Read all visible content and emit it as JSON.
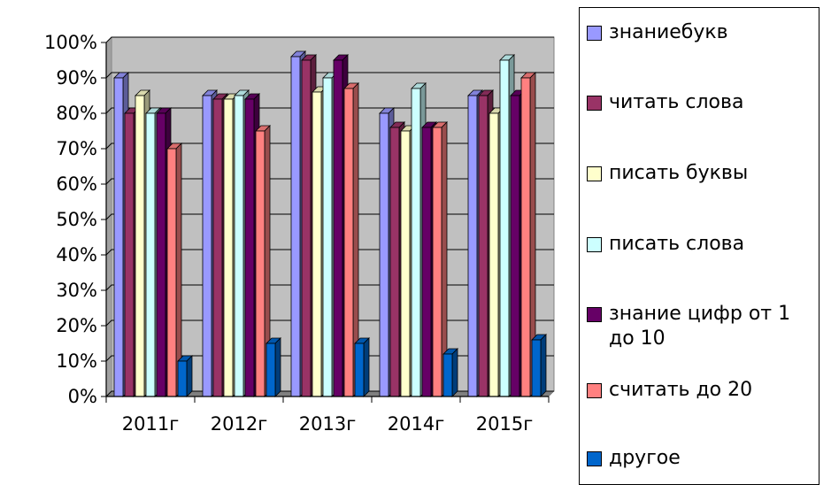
{
  "chart_data": {
    "type": "bar",
    "categories": [
      "2011г",
      "2012г",
      "2013г",
      "2014г",
      "2015г"
    ],
    "y_ticks": [
      "0%",
      "10%",
      "20%",
      "30%",
      "40%",
      "50%",
      "60%",
      "70%",
      "80%",
      "90%",
      "100%"
    ],
    "ylim": [
      0,
      100
    ],
    "grid": true,
    "legend_position": "right",
    "series": [
      {
        "name": "знаниебукв",
        "color": "#9999ff",
        "values": [
          90,
          85,
          96,
          80,
          85
        ]
      },
      {
        "name": "читать слова",
        "color": "#993366",
        "values": [
          80,
          84,
          95,
          76,
          85
        ]
      },
      {
        "name": "писать буквы",
        "color": "#ffffcc",
        "values": [
          85,
          84,
          86,
          75,
          80
        ]
      },
      {
        "name": "писать слова",
        "color": "#ccffff",
        "values": [
          80,
          85,
          90,
          87,
          95
        ]
      },
      {
        "name": "знание цифр от 1 до 10",
        "color": "#660066",
        "values": [
          80,
          84,
          95,
          76,
          85
        ]
      },
      {
        "name": "считать до  20",
        "color": "#ff8080",
        "values": [
          70,
          75,
          87,
          76,
          90
        ]
      },
      {
        "name": "другое",
        "color": "#0066cc",
        "values": [
          10,
          15,
          15,
          12,
          16
        ]
      }
    ]
  }
}
